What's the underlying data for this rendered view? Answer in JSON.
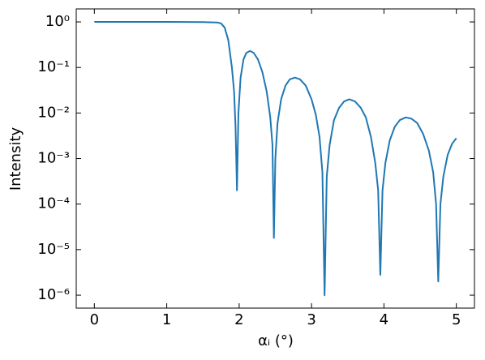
{
  "chart_data": {
    "type": "line",
    "xlabel": "αᵢ (°)",
    "ylabel": "Intensity",
    "log_y": true,
    "color": "#1f77b4",
    "xlim": [
      -0.25,
      5.25
    ],
    "xticks": [
      0,
      1,
      2,
      3,
      4,
      5
    ],
    "ylim": [
      5.2e-07,
      1.93
    ],
    "yticks": [
      {
        "value": 1,
        "label": "10⁰"
      },
      {
        "value": 0.1,
        "label": "10⁻¹"
      },
      {
        "value": 0.01,
        "label": "10⁻²"
      },
      {
        "value": 0.001,
        "label": "10⁻³"
      },
      {
        "value": 0.0001,
        "label": "10⁻⁴"
      },
      {
        "value": 1e-05,
        "label": "10⁻⁵"
      },
      {
        "value": 1e-06,
        "label": "10⁻⁶"
      }
    ],
    "x": [
      0,
      1.0,
      1.5,
      1.7,
      1.75,
      1.8,
      1.85,
      1.9,
      1.93,
      1.95,
      1.97,
      1.99,
      2.02,
      2.06,
      2.1,
      2.15,
      2.2,
      2.26,
      2.32,
      2.38,
      2.43,
      2.46,
      2.48,
      2.5,
      2.53,
      2.58,
      2.64,
      2.7,
      2.77,
      2.84,
      2.92,
      3.0,
      3.06,
      3.11,
      3.15,
      3.18,
      3.21,
      3.25,
      3.31,
      3.38,
      3.45,
      3.52,
      3.6,
      3.68,
      3.75,
      3.82,
      3.88,
      3.92,
      3.95,
      3.98,
      4.02,
      4.08,
      4.15,
      4.22,
      4.3,
      4.38,
      4.46,
      4.54,
      4.62,
      4.68,
      4.72,
      4.75,
      4.78,
      4.82,
      4.88,
      4.94,
      5.0
    ],
    "values": [
      1,
      1,
      0.99,
      0.97,
      0.93,
      0.75,
      0.4,
      0.1,
      0.03,
      0.005,
      0.0002,
      0.01,
      0.06,
      0.15,
      0.21,
      0.23,
      0.21,
      0.15,
      0.08,
      0.03,
      0.008,
      0.002,
      1.8e-05,
      0.001,
      0.006,
      0.02,
      0.04,
      0.055,
      0.06,
      0.055,
      0.04,
      0.02,
      0.009,
      0.003,
      0.0005,
      1e-06,
      0.0004,
      0.002,
      0.007,
      0.013,
      0.018,
      0.02,
      0.018,
      0.013,
      0.008,
      0.003,
      0.0008,
      0.0002,
      2.8e-06,
      0.0002,
      0.0008,
      0.0025,
      0.005,
      0.007,
      0.008,
      0.0075,
      0.006,
      0.0035,
      0.0015,
      0.0005,
      0.0001,
      2e-06,
      0.0001,
      0.0004,
      0.0012,
      0.0021,
      0.0028
    ]
  }
}
